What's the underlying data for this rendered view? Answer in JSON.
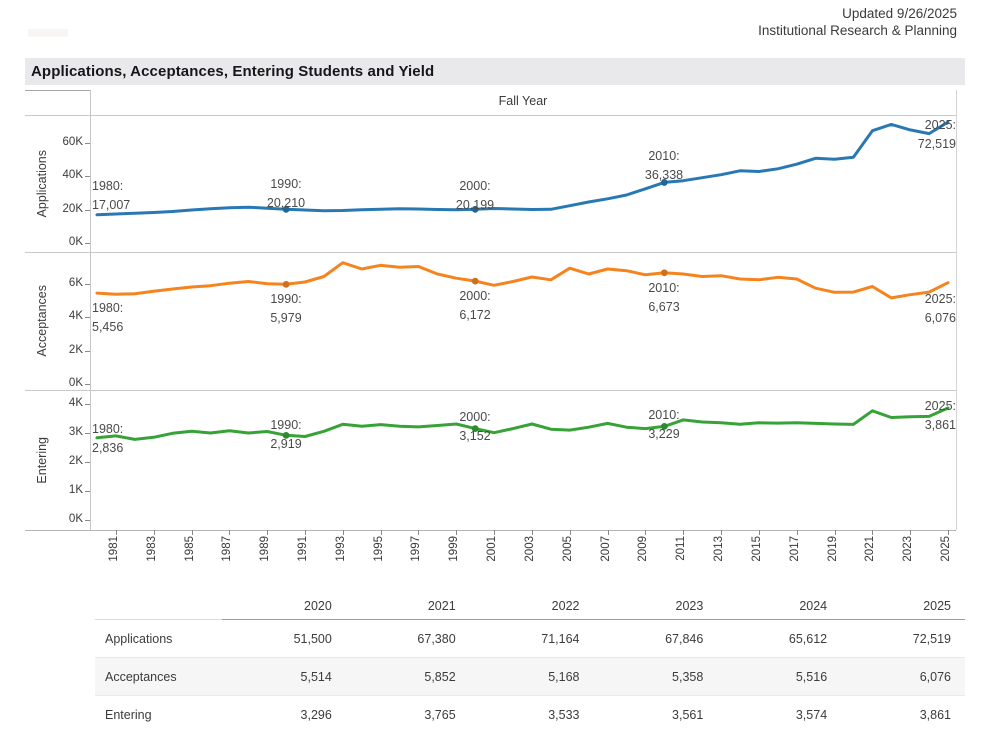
{
  "header": {
    "updated": "Updated 9/26/2025",
    "org": "Institutional Research & Planning"
  },
  "title": "Applications, Acceptances, Entering Students and Yield",
  "chart_data": {
    "type": "line",
    "x_label": "Fall Year",
    "x": [
      1980,
      1981,
      1982,
      1983,
      1984,
      1985,
      1986,
      1987,
      1988,
      1989,
      1990,
      1991,
      1992,
      1993,
      1994,
      1995,
      1996,
      1997,
      1998,
      1999,
      2000,
      2001,
      2002,
      2003,
      2004,
      2005,
      2006,
      2007,
      2008,
      2009,
      2010,
      2011,
      2012,
      2013,
      2014,
      2015,
      2016,
      2017,
      2018,
      2019,
      2020,
      2021,
      2022,
      2023,
      2024,
      2025
    ],
    "x_tick_labels": [
      "1981",
      "1983",
      "1985",
      "1987",
      "1989",
      "1991",
      "1993",
      "1995",
      "1997",
      "1999",
      "2001",
      "2003",
      "2005",
      "2007",
      "2009",
      "2011",
      "2013",
      "2015",
      "2017",
      "2019",
      "2021",
      "2023",
      "2025"
    ],
    "series": [
      {
        "name": "Applications",
        "color": "#2878b4",
        "ylim": [
          0,
          76800
        ],
        "yticks": [
          {
            "v": 0,
            "label": "0K"
          },
          {
            "v": 20000,
            "label": "20K"
          },
          {
            "v": 40000,
            "label": "40K"
          },
          {
            "v": 60000,
            "label": "60K"
          }
        ],
        "marked_years": [
          1990,
          2000,
          2010
        ],
        "values": [
          17007,
          17400,
          17900,
          18300,
          18900,
          19800,
          20600,
          21200,
          21500,
          20900,
          20210,
          19800,
          19300,
          19500,
          20000,
          20300,
          20600,
          20400,
          20100,
          20000,
          20199,
          20700,
          20400,
          20100,
          20200,
          22400,
          24600,
          26500,
          28800,
          32500,
          36338,
          37400,
          39200,
          41000,
          43300,
          42900,
          44500,
          47300,
          50800,
          50200,
          51500,
          67380,
          71164,
          67846,
          65612,
          72519
        ],
        "annotations": [
          {
            "year": 1980,
            "text": "1980:",
            "value_text": "17,007"
          },
          {
            "year": 1990,
            "text": "1990:",
            "value_text": "20,210"
          },
          {
            "year": 2000,
            "text": "2000:",
            "value_text": "20,199"
          },
          {
            "year": 2010,
            "text": "2010:",
            "value_text": "36,338"
          },
          {
            "year": 2025,
            "text": "2025:",
            "value_text": "72,519"
          }
        ]
      },
      {
        "name": "Acceptances",
        "color": "#f5841e",
        "ylim": [
          0,
          7920
        ],
        "yticks": [
          {
            "v": 0,
            "label": "0K"
          },
          {
            "v": 2000,
            "label": "2K"
          },
          {
            "v": 4000,
            "label": "4K"
          },
          {
            "v": 6000,
            "label": "6K"
          }
        ],
        "marked_years": [
          1990,
          2000,
          2010
        ],
        "values": [
          5456,
          5380,
          5420,
          5560,
          5700,
          5820,
          5900,
          6050,
          6150,
          6020,
          5979,
          6120,
          6450,
          7280,
          6900,
          7120,
          7000,
          7050,
          6600,
          6350,
          6172,
          5920,
          6150,
          6420,
          6250,
          6950,
          6600,
          6900,
          6800,
          6550,
          6673,
          6600,
          6450,
          6500,
          6300,
          6250,
          6400,
          6300,
          5750,
          5500,
          5514,
          5852,
          5168,
          5358,
          5516,
          6076
        ],
        "annotations": [
          {
            "year": 1980,
            "text": "1980:",
            "value_text": "5,456"
          },
          {
            "year": 1990,
            "text": "1990:",
            "value_text": "5,979"
          },
          {
            "year": 2000,
            "text": "2000:",
            "value_text": "6,172"
          },
          {
            "year": 2010,
            "text": "2010:",
            "value_text": "6,673"
          },
          {
            "year": 2025,
            "text": "2025:",
            "value_text": "6,076"
          }
        ]
      },
      {
        "name": "Entering",
        "color": "#37a337",
        "ylim": [
          0,
          4482
        ],
        "yticks": [
          {
            "v": 0,
            "label": "0K"
          },
          {
            "v": 1000,
            "label": "1K"
          },
          {
            "v": 2000,
            "label": "2K"
          },
          {
            "v": 3000,
            "label": "3K"
          },
          {
            "v": 4000,
            "label": "4K"
          }
        ],
        "marked_years": [
          1990,
          2000,
          2010
        ],
        "values": [
          2836,
          2900,
          2780,
          2850,
          2990,
          3060,
          3000,
          3080,
          3000,
          3050,
          2919,
          2880,
          3060,
          3300,
          3230,
          3290,
          3230,
          3210,
          3260,
          3310,
          3152,
          3010,
          3150,
          3310,
          3130,
          3100,
          3200,
          3330,
          3200,
          3150,
          3229,
          3450,
          3380,
          3350,
          3300,
          3350,
          3340,
          3350,
          3330,
          3310,
          3296,
          3765,
          3533,
          3561,
          3574,
          3861
        ],
        "annotations": [
          {
            "year": 1980,
            "text": "1980:",
            "value_text": "2,836"
          },
          {
            "year": 1990,
            "text": "1990:",
            "value_text": "2,919"
          },
          {
            "year": 2000,
            "text": "2000:",
            "value_text": "3,152"
          },
          {
            "year": 2010,
            "text": "2010:",
            "value_text": "3,229"
          },
          {
            "year": 2025,
            "text": "2025:",
            "value_text": "3,861"
          }
        ]
      }
    ]
  },
  "table": {
    "col_headers": [
      "2020",
      "2021",
      "2022",
      "2023",
      "2024",
      "2025"
    ],
    "rows": [
      {
        "label": "Applications",
        "values": [
          "51,500",
          "67,380",
          "71,164",
          "67,846",
          "65,612",
          "72,519"
        ]
      },
      {
        "label": "Acceptances",
        "values": [
          "5,514",
          "5,852",
          "5,168",
          "5,358",
          "5,516",
          "6,076"
        ]
      },
      {
        "label": "Entering",
        "values": [
          "3,296",
          "3,765",
          "3,533",
          "3,561",
          "3,574",
          "3,861"
        ]
      }
    ]
  }
}
